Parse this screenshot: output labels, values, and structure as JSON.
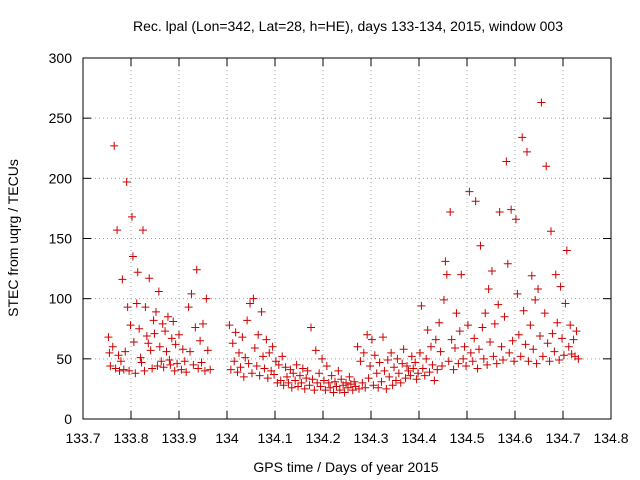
{
  "chart_data": {
    "type": "scatter",
    "title": "Rec. lpal (Lon=342, Lat=28, h=HE), days 133-134, 2015, window 003",
    "xlabel": "GPS time / Days of year 2015",
    "ylabel": "STEC from uqrg / TECUs",
    "xlim": [
      133.7,
      134.8
    ],
    "ylim": [
      0,
      300
    ],
    "xticks": [
      133.7,
      133.8,
      133.9,
      134,
      134.1,
      134.2,
      134.3,
      134.4,
      134.5,
      134.6,
      134.7,
      134.8
    ],
    "xtick_labels": [
      "133.7",
      "133.8",
      "133.9",
      "134",
      "134.1",
      "134.2",
      "134.3",
      "134.4",
      "134.5",
      "134.6",
      "134.7",
      "134.8"
    ],
    "yticks": [
      0,
      50,
      100,
      150,
      200,
      250,
      300
    ],
    "ytick_labels": [
      "0",
      "50",
      "100",
      "150",
      "200",
      "250",
      "300"
    ],
    "grid": true,
    "marker": "plus",
    "marker_color": "#cc0000",
    "series": [
      {
        "name": "",
        "points": [
          [
            133.753,
            68
          ],
          [
            133.755,
            55
          ],
          [
            133.757,
            44
          ],
          [
            133.762,
            60
          ],
          [
            133.765,
            227
          ],
          [
            133.768,
            42
          ],
          [
            133.771,
            157
          ],
          [
            133.774,
            53
          ],
          [
            133.776,
            40
          ],
          [
            133.779,
            48
          ],
          [
            133.782,
            116
          ],
          [
            133.785,
            41
          ],
          [
            133.788,
            56
          ],
          [
            133.791,
            197
          ],
          [
            133.793,
            93
          ],
          [
            133.796,
            40
          ],
          [
            133.799,
            78
          ],
          [
            133.802,
            168
          ],
          [
            133.804,
            135
          ],
          [
            133.806,
            64
          ],
          [
            133.809,
            38
          ],
          [
            133.812,
            96
          ],
          [
            133.814,
            122
          ],
          [
            133.817,
            75
          ],
          [
            133.82,
            51
          ],
          [
            133.822,
            47
          ],
          [
            133.825,
            157
          ],
          [
            133.828,
            40
          ],
          [
            133.83,
            93
          ],
          [
            133.833,
            69
          ],
          [
            133.836,
            63
          ],
          [
            133.838,
            117
          ],
          [
            133.841,
            57
          ],
          [
            133.844,
            42
          ],
          [
            133.847,
            82
          ],
          [
            133.849,
            71
          ],
          [
            133.852,
            89
          ],
          [
            133.855,
            44
          ],
          [
            133.858,
            106
          ],
          [
            133.86,
            60
          ],
          [
            133.863,
            48
          ],
          [
            133.866,
            79
          ],
          [
            133.868,
            43
          ],
          [
            133.871,
            73
          ],
          [
            133.874,
            56
          ],
          [
            133.877,
            85
          ],
          [
            133.88,
            49
          ],
          [
            133.882,
            45
          ],
          [
            133.885,
            67
          ],
          [
            133.888,
            81
          ],
          [
            133.891,
            40
          ],
          [
            133.893,
            62
          ],
          [
            133.896,
            46
          ],
          [
            133.9,
            70
          ],
          [
            133.905,
            41
          ],
          [
            133.908,
            58
          ],
          [
            133.912,
            48
          ],
          [
            133.915,
            39
          ],
          [
            133.92,
            93
          ],
          [
            133.923,
            56
          ],
          [
            133.926,
            104
          ],
          [
            133.93,
            45
          ],
          [
            133.934,
            76
          ],
          [
            133.937,
            124
          ],
          [
            133.94,
            42
          ],
          [
            133.944,
            65
          ],
          [
            133.947,
            47
          ],
          [
            133.95,
            79
          ],
          [
            133.954,
            40
          ],
          [
            133.957,
            100
          ],
          [
            133.96,
            57
          ],
          [
            133.965,
            41
          ],
          [
            134.005,
            78
          ],
          [
            134.008,
            41
          ],
          [
            134.012,
            63
          ],
          [
            134.015,
            48
          ],
          [
            134.018,
            72
          ],
          [
            134.022,
            39
          ],
          [
            134.025,
            55
          ],
          [
            134.028,
            43
          ],
          [
            134.032,
            68
          ],
          [
            134.035,
            35
          ],
          [
            134.038,
            51
          ],
          [
            134.042,
            82
          ],
          [
            134.045,
            46
          ],
          [
            134.048,
            96
          ],
          [
            134.052,
            38
          ],
          [
            134.055,
            100
          ],
          [
            134.058,
            59
          ],
          [
            134.062,
            44
          ],
          [
            134.065,
            70
          ],
          [
            134.068,
            36
          ],
          [
            134.072,
            89
          ],
          [
            134.075,
            52
          ],
          [
            134.078,
            42
          ],
          [
            134.082,
            66
          ],
          [
            134.085,
            34
          ],
          [
            134.088,
            55
          ],
          [
            134.092,
            40
          ],
          [
            134.095,
            60
          ],
          [
            134.098,
            37
          ],
          [
            134.102,
            48
          ],
          [
            134.105,
            30
          ],
          [
            134.108,
            45
          ],
          [
            134.112,
            32
          ],
          [
            134.115,
            52
          ],
          [
            134.118,
            28
          ],
          [
            134.122,
            43
          ],
          [
            134.125,
            35
          ],
          [
            134.128,
            30
          ],
          [
            134.132,
            41
          ],
          [
            134.135,
            26
          ],
          [
            134.138,
            38
          ],
          [
            134.142,
            32
          ],
          [
            134.145,
            45
          ],
          [
            134.148,
            27
          ],
          [
            134.152,
            36
          ],
          [
            134.155,
            30
          ],
          [
            134.158,
            42
          ],
          [
            134.162,
            25
          ],
          [
            134.165,
            34
          ],
          [
            134.168,
            40
          ],
          [
            134.172,
            28
          ],
          [
            134.175,
            76
          ],
          [
            134.178,
            33
          ],
          [
            134.182,
            24
          ],
          [
            134.185,
            57
          ],
          [
            134.188,
            30
          ],
          [
            134.192,
            38
          ],
          [
            134.195,
            27
          ],
          [
            134.198,
            50
          ],
          [
            134.202,
            32
          ],
          [
            134.205,
            24
          ],
          [
            134.208,
            44
          ],
          [
            134.212,
            30
          ],
          [
            134.215,
            26
          ],
          [
            134.218,
            36
          ],
          [
            134.222,
            22
          ],
          [
            134.225,
            31
          ],
          [
            134.228,
            27
          ],
          [
            134.232,
            40
          ],
          [
            134.235,
            24
          ],
          [
            134.238,
            33
          ],
          [
            134.242,
            28
          ],
          [
            134.245,
            22
          ],
          [
            134.248,
            30
          ],
          [
            134.252,
            26
          ],
          [
            134.255,
            35
          ],
          [
            134.258,
            29
          ],
          [
            134.262,
            24
          ],
          [
            134.265,
            31
          ],
          [
            134.268,
            27
          ],
          [
            134.272,
            60
          ],
          [
            134.275,
            25
          ],
          [
            134.278,
            48
          ],
          [
            134.282,
            30
          ],
          [
            134.285,
            55
          ],
          [
            134.288,
            26
          ],
          [
            134.292,
            70
          ],
          [
            134.295,
            34
          ],
          [
            134.298,
            44
          ],
          [
            134.302,
            66
          ],
          [
            134.305,
            28
          ],
          [
            134.308,
            53
          ],
          [
            134.312,
            38
          ],
          [
            134.315,
            26
          ],
          [
            134.318,
            47
          ],
          [
            134.322,
            31
          ],
          [
            134.325,
            68
          ],
          [
            134.328,
            40
          ],
          [
            134.332,
            25
          ],
          [
            134.335,
            49
          ],
          [
            134.338,
            35
          ],
          [
            134.342,
            55
          ],
          [
            134.345,
            28
          ],
          [
            134.348,
            43
          ],
          [
            134.352,
            32
          ],
          [
            134.355,
            50
          ],
          [
            134.358,
            38
          ],
          [
            134.362,
            30
          ],
          [
            134.365,
            46
          ],
          [
            134.368,
            58
          ],
          [
            134.372,
            34
          ],
          [
            134.375,
            44
          ],
          [
            134.378,
            40
          ],
          [
            134.382,
            36
          ],
          [
            134.385,
            52
          ],
          [
            134.388,
            42
          ],
          [
            134.392,
            47
          ],
          [
            134.395,
            33
          ],
          [
            134.398,
            38
          ],
          [
            134.402,
            55
          ],
          [
            134.405,
            94
          ],
          [
            134.408,
            42
          ],
          [
            134.412,
            36
          ],
          [
            134.415,
            50
          ],
          [
            134.418,
            74
          ],
          [
            134.422,
            39
          ],
          [
            134.425,
            60
          ],
          [
            134.428,
            45
          ],
          [
            134.432,
            32
          ],
          [
            134.435,
            66
          ],
          [
            134.438,
            41
          ],
          [
            134.442,
            80
          ],
          [
            134.445,
            56
          ],
          [
            134.448,
            44
          ],
          [
            134.452,
            99
          ],
          [
            134.455,
            131
          ],
          [
            134.458,
            120
          ],
          [
            134.462,
            48
          ],
          [
            134.465,
            172
          ],
          [
            134.468,
            66
          ],
          [
            134.472,
            41
          ],
          [
            134.475,
            59
          ],
          [
            134.478,
            88
          ],
          [
            134.482,
            46
          ],
          [
            134.485,
            73
          ],
          [
            134.488,
            120
          ],
          [
            134.492,
            50
          ],
          [
            134.495,
            60
          ],
          [
            134.498,
            44
          ],
          [
            134.502,
            78
          ],
          [
            134.505,
            189
          ],
          [
            134.508,
            55
          ],
          [
            134.512,
            48
          ],
          [
            134.515,
            67
          ],
          [
            134.518,
            181
          ],
          [
            134.522,
            42
          ],
          [
            134.525,
            58
          ],
          [
            134.528,
            144
          ],
          [
            134.532,
            76
          ],
          [
            134.535,
            50
          ],
          [
            134.538,
            88
          ],
          [
            134.542,
            45
          ],
          [
            134.545,
            108
          ],
          [
            134.548,
            64
          ],
          [
            134.552,
            123
          ],
          [
            134.555,
            52
          ],
          [
            134.558,
            79
          ],
          [
            134.562,
            46
          ],
          [
            134.565,
            95
          ],
          [
            134.568,
            172
          ],
          [
            134.572,
            60
          ],
          [
            134.575,
            49
          ],
          [
            134.578,
            85
          ],
          [
            134.582,
            214
          ],
          [
            134.585,
            129
          ],
          [
            134.588,
            55
          ],
          [
            134.592,
            174
          ],
          [
            134.595,
            65
          ],
          [
            134.598,
            48
          ],
          [
            134.602,
            166
          ],
          [
            134.605,
            104
          ],
          [
            134.608,
            70
          ],
          [
            134.612,
            52
          ],
          [
            134.615,
            234
          ],
          [
            134.618,
            90
          ],
          [
            134.622,
            62
          ],
          [
            134.625,
            222
          ],
          [
            134.628,
            48
          ],
          [
            134.632,
            78
          ],
          [
            134.635,
            119
          ],
          [
            134.638,
            58
          ],
          [
            134.642,
            99
          ],
          [
            134.645,
            46
          ],
          [
            134.648,
            108
          ],
          [
            134.652,
            69
          ],
          [
            134.655,
            263
          ],
          [
            134.658,
            52
          ],
          [
            134.662,
            88
          ],
          [
            134.665,
            210
          ],
          [
            134.668,
            63
          ],
          [
            134.672,
            48
          ],
          [
            134.675,
            156
          ],
          [
            134.678,
            71
          ],
          [
            134.682,
            56
          ],
          [
            134.685,
            120
          ],
          [
            134.688,
            80
          ],
          [
            134.692,
            49
          ],
          [
            134.695,
            110
          ],
          [
            134.698,
            67
          ],
          [
            134.702,
            53
          ],
          [
            134.705,
            96
          ],
          [
            134.708,
            140
          ],
          [
            134.712,
            60
          ],
          [
            134.715,
            78
          ],
          [
            134.718,
            54
          ],
          [
            134.722,
            66
          ],
          [
            134.725,
            52
          ],
          [
            134.728,
            73
          ],
          [
            134.732,
            50
          ]
        ]
      }
    ]
  }
}
